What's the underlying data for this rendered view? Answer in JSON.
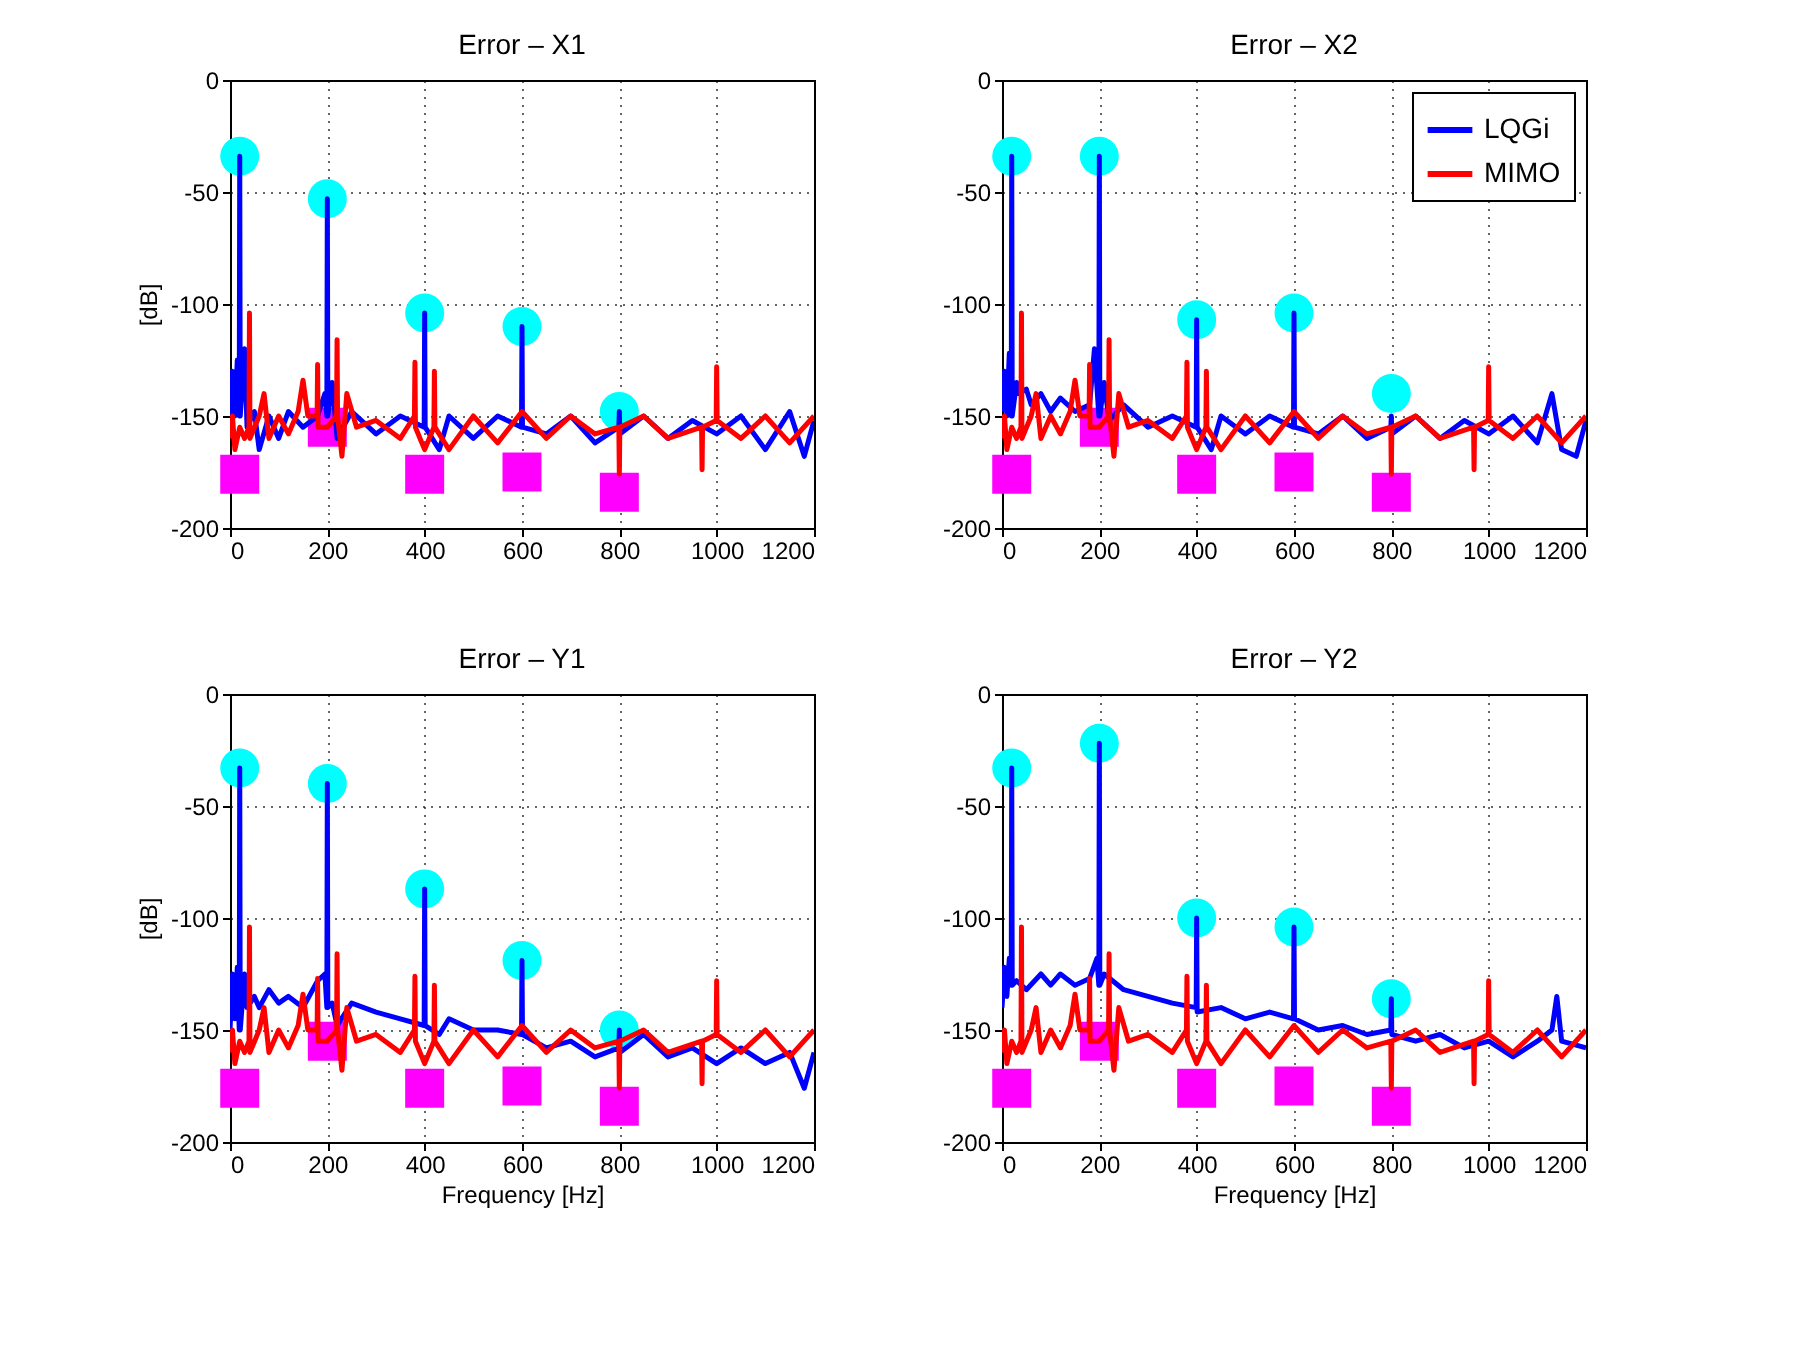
{
  "chart_data": [
    {
      "type": "line",
      "title": "Error – X1",
      "ylabel": "[dB]",
      "xlim": [
        0,
        1200
      ],
      "ylim": [
        -200,
        0
      ],
      "xticks": [
        0,
        200,
        400,
        600,
        800,
        1000,
        1200
      ],
      "yticks": [
        -200,
        -150,
        -100,
        -50,
        0
      ],
      "grid": true,
      "legend": false,
      "series": [
        {
          "color": "#0000ff",
          "x": [
            0,
            5,
            10,
            15,
            19,
            20,
            21,
            30,
            35,
            50,
            60,
            80,
            100,
            120,
            150,
            180,
            195,
            199,
            200,
            201,
            210,
            220,
            250,
            300,
            350,
            399,
            400,
            401,
            430,
            450,
            500,
            550,
            599,
            600,
            601,
            650,
            700,
            750,
            799,
            800,
            801,
            850,
            900,
            950,
            1000,
            1050,
            1100,
            1150,
            1180,
            1200
          ],
          "values": [
            -150,
            -130,
            -150,
            -125,
            -150,
            -34,
            -150,
            -120,
            -155,
            -148,
            -165,
            -150,
            -160,
            -148,
            -155,
            -150,
            -140,
            -150,
            -53,
            -150,
            -135,
            -160,
            -148,
            -158,
            -150,
            -155,
            -104,
            -155,
            -165,
            -150,
            -160,
            -150,
            -155,
            -110,
            -155,
            -158,
            -150,
            -162,
            -155,
            -148,
            -158,
            -150,
            -160,
            -152,
            -158,
            -150,
            -165,
            -148,
            -168,
            -152
          ]
        },
        {
          "color": "#ff0000",
          "x": [
            0,
            5,
            10,
            20,
            30,
            39,
            40,
            41,
            60,
            70,
            80,
            100,
            120,
            140,
            150,
            160,
            179,
            180,
            181,
            200,
            219,
            220,
            221,
            230,
            240,
            260,
            300,
            350,
            379,
            380,
            381,
            400,
            419,
            420,
            421,
            450,
            500,
            550,
            600,
            650,
            700,
            750,
            799,
            800,
            801,
            850,
            900,
            969,
            970,
            971,
            999,
            1000,
            1001,
            1050,
            1100,
            1150,
            1200
          ],
          "values": [
            -160,
            -150,
            -165,
            -155,
            -160,
            -155,
            -104,
            -160,
            -150,
            -140,
            -160,
            -150,
            -158,
            -148,
            -134,
            -150,
            -150,
            -127,
            -155,
            -155,
            -150,
            -116,
            -150,
            -168,
            -140,
            -155,
            -152,
            -160,
            -150,
            -126,
            -155,
            -165,
            -155,
            -130,
            -155,
            -165,
            -150,
            -162,
            -148,
            -160,
            -150,
            -158,
            -155,
            -176,
            -155,
            -150,
            -160,
            -155,
            -174,
            -155,
            -152,
            -128,
            -152,
            -160,
            -150,
            -162,
            -150
          ]
        },
        {
          "type": "scatter",
          "marker": "circle",
          "color": "#00ffff",
          "x": [
            20,
            200,
            400,
            600,
            800
          ],
          "values": [
            -34,
            -53,
            -104,
            -110,
            -148
          ]
        },
        {
          "type": "scatter",
          "marker": "square",
          "color": "#ff00ff",
          "x": [
            20,
            200,
            400,
            600,
            800
          ],
          "values": [
            -176,
            -155,
            -176,
            -175,
            -184
          ]
        }
      ]
    },
    {
      "type": "line",
      "title": "Error – X2",
      "xlim": [
        0,
        1200
      ],
      "ylim": [
        -200,
        0
      ],
      "xticks": [
        0,
        200,
        400,
        600,
        800,
        1000,
        1200
      ],
      "yticks": [
        -200,
        -150,
        -100,
        -50,
        0
      ],
      "grid": true,
      "legend": "top right",
      "series": [
        {
          "name": "LQGi",
          "color": "#0000ff",
          "x": [
            0,
            5,
            10,
            15,
            19,
            20,
            21,
            30,
            35,
            50,
            60,
            80,
            100,
            120,
            150,
            180,
            190,
            199,
            200,
            201,
            210,
            220,
            250,
            300,
            350,
            399,
            400,
            401,
            430,
            450,
            500,
            550,
            599,
            600,
            601,
            650,
            700,
            750,
            799,
            800,
            801,
            850,
            900,
            950,
            1000,
            1050,
            1100,
            1130,
            1150,
            1180,
            1200
          ],
          "values": [
            -148,
            -130,
            -150,
            -122,
            -150,
            -34,
            -150,
            -135,
            -140,
            -138,
            -145,
            -140,
            -148,
            -142,
            -148,
            -145,
            -120,
            -150,
            -34,
            -150,
            -135,
            -152,
            -145,
            -155,
            -150,
            -155,
            -107,
            -155,
            -165,
            -150,
            -158,
            -150,
            -155,
            -104,
            -155,
            -158,
            -150,
            -160,
            -155,
            -150,
            -158,
            -150,
            -160,
            -152,
            -158,
            -150,
            -162,
            -140,
            -165,
            -168,
            -152
          ]
        },
        {
          "name": "MIMO",
          "color": "#ff0000",
          "x": [
            0,
            5,
            10,
            20,
            30,
            39,
            40,
            41,
            60,
            70,
            80,
            100,
            120,
            140,
            150,
            160,
            179,
            180,
            181,
            200,
            219,
            220,
            221,
            230,
            240,
            260,
            300,
            350,
            379,
            380,
            381,
            400,
            419,
            420,
            421,
            450,
            500,
            550,
            600,
            650,
            700,
            750,
            799,
            800,
            801,
            850,
            900,
            969,
            970,
            971,
            999,
            1000,
            1001,
            1050,
            1100,
            1150,
            1200
          ],
          "values": [
            -160,
            -150,
            -165,
            -155,
            -160,
            -155,
            -104,
            -160,
            -150,
            -140,
            -160,
            -150,
            -158,
            -148,
            -134,
            -150,
            -150,
            -127,
            -155,
            -155,
            -150,
            -116,
            -150,
            -168,
            -140,
            -155,
            -152,
            -160,
            -150,
            -126,
            -155,
            -165,
            -155,
            -130,
            -155,
            -165,
            -150,
            -162,
            -148,
            -160,
            -150,
            -158,
            -155,
            -176,
            -155,
            -150,
            -160,
            -155,
            -174,
            -155,
            -152,
            -128,
            -152,
            -160,
            -150,
            -162,
            -150
          ]
        },
        {
          "type": "scatter",
          "marker": "circle",
          "color": "#00ffff",
          "x": [
            20,
            200,
            400,
            600,
            800
          ],
          "values": [
            -34,
            -34,
            -107,
            -104,
            -140
          ]
        },
        {
          "type": "scatter",
          "marker": "square",
          "color": "#ff00ff",
          "x": [
            20,
            200,
            400,
            600,
            800
          ],
          "values": [
            -176,
            -155,
            -176,
            -175,
            -184
          ]
        }
      ]
    },
    {
      "type": "line",
      "title": "Error – Y1",
      "xlabel": "Frequency [Hz]",
      "ylabel": "[dB]",
      "xlim": [
        0,
        1200
      ],
      "ylim": [
        -200,
        0
      ],
      "xticks": [
        0,
        200,
        400,
        600,
        800,
        1000,
        1200
      ],
      "yticks": [
        -200,
        -150,
        -100,
        -50,
        0
      ],
      "grid": true,
      "legend": false,
      "series": [
        {
          "color": "#0000ff",
          "x": [
            0,
            5,
            10,
            15,
            19,
            20,
            21,
            30,
            35,
            50,
            60,
            80,
            100,
            120,
            150,
            180,
            195,
            199,
            200,
            201,
            210,
            220,
            250,
            300,
            350,
            399,
            400,
            401,
            430,
            450,
            500,
            550,
            599,
            600,
            601,
            650,
            700,
            750,
            799,
            800,
            801,
            850,
            900,
            950,
            1000,
            1050,
            1100,
            1150,
            1180,
            1200
          ],
          "values": [
            -150,
            -125,
            -145,
            -122,
            -150,
            -33,
            -150,
            -125,
            -140,
            -135,
            -140,
            -132,
            -138,
            -135,
            -140,
            -128,
            -125,
            -140,
            -40,
            -140,
            -138,
            -148,
            -138,
            -142,
            -145,
            -148,
            -87,
            -148,
            -152,
            -145,
            -150,
            -150,
            -152,
            -119,
            -152,
            -158,
            -155,
            -162,
            -158,
            -150,
            -160,
            -152,
            -162,
            -158,
            -165,
            -158,
            -165,
            -160,
            -176,
            -160
          ]
        },
        {
          "color": "#ff0000",
          "x": [
            0,
            5,
            10,
            20,
            30,
            39,
            40,
            41,
            60,
            70,
            80,
            100,
            120,
            140,
            150,
            160,
            179,
            180,
            181,
            200,
            219,
            220,
            221,
            230,
            240,
            260,
            300,
            350,
            379,
            380,
            381,
            400,
            419,
            420,
            421,
            450,
            500,
            550,
            600,
            650,
            700,
            750,
            799,
            800,
            801,
            850,
            900,
            969,
            970,
            971,
            999,
            1000,
            1001,
            1050,
            1100,
            1150,
            1200
          ],
          "values": [
            -160,
            -150,
            -165,
            -155,
            -160,
            -155,
            -104,
            -160,
            -150,
            -140,
            -160,
            -150,
            -158,
            -148,
            -134,
            -150,
            -150,
            -127,
            -155,
            -155,
            -150,
            -116,
            -150,
            -168,
            -140,
            -155,
            -152,
            -160,
            -150,
            -126,
            -155,
            -165,
            -155,
            -130,
            -155,
            -165,
            -150,
            -162,
            -148,
            -160,
            -150,
            -158,
            -155,
            -176,
            -155,
            -150,
            -160,
            -155,
            -174,
            -155,
            -152,
            -128,
            -152,
            -160,
            -150,
            -162,
            -150
          ]
        },
        {
          "type": "scatter",
          "marker": "circle",
          "color": "#00ffff",
          "x": [
            20,
            200,
            400,
            600,
            800
          ],
          "values": [
            -33,
            -40,
            -87,
            -119,
            -150
          ]
        },
        {
          "type": "scatter",
          "marker": "square",
          "color": "#ff00ff",
          "x": [
            20,
            200,
            400,
            600,
            800
          ],
          "values": [
            -176,
            -155,
            -176,
            -175,
            -184
          ]
        }
      ]
    },
    {
      "type": "line",
      "title": "Error – Y2",
      "xlabel": "Frequency [Hz]",
      "xlim": [
        0,
        1200
      ],
      "ylim": [
        -200,
        0
      ],
      "xticks": [
        0,
        200,
        400,
        600,
        800,
        1000,
        1200
      ],
      "yticks": [
        -200,
        -150,
        -100,
        -50,
        0
      ],
      "grid": true,
      "legend": false,
      "series": [
        {
          "color": "#0000ff",
          "x": [
            0,
            5,
            10,
            15,
            19,
            20,
            21,
            30,
            50,
            80,
            100,
            120,
            150,
            180,
            195,
            199,
            200,
            201,
            210,
            250,
            300,
            350,
            399,
            400,
            401,
            450,
            500,
            550,
            599,
            600,
            601,
            650,
            700,
            750,
            799,
            800,
            801,
            850,
            900,
            950,
            1000,
            1050,
            1100,
            1130,
            1140,
            1150,
            1200
          ],
          "values": [
            -140,
            -122,
            -135,
            -118,
            -130,
            -33,
            -130,
            -128,
            -132,
            -125,
            -130,
            -125,
            -130,
            -127,
            -118,
            -130,
            -22,
            -130,
            -125,
            -132,
            -135,
            -138,
            -140,
            -100,
            -142,
            -140,
            -145,
            -142,
            -145,
            -104,
            -145,
            -150,
            -148,
            -152,
            -150,
            -136,
            -152,
            -155,
            -152,
            -158,
            -155,
            -162,
            -155,
            -150,
            -135,
            -155,
            -158
          ]
        },
        {
          "color": "#ff0000",
          "x": [
            0,
            5,
            10,
            20,
            30,
            39,
            40,
            41,
            60,
            70,
            80,
            100,
            120,
            140,
            150,
            160,
            179,
            180,
            181,
            200,
            219,
            220,
            221,
            230,
            240,
            260,
            300,
            350,
            379,
            380,
            381,
            400,
            419,
            420,
            421,
            450,
            500,
            550,
            600,
            650,
            700,
            750,
            799,
            800,
            801,
            850,
            900,
            969,
            970,
            971,
            999,
            1000,
            1001,
            1050,
            1100,
            1150,
            1200
          ],
          "values": [
            -160,
            -150,
            -165,
            -155,
            -160,
            -155,
            -104,
            -160,
            -150,
            -140,
            -160,
            -150,
            -158,
            -148,
            -134,
            -150,
            -150,
            -127,
            -155,
            -155,
            -150,
            -116,
            -150,
            -168,
            -140,
            -155,
            -152,
            -160,
            -150,
            -126,
            -155,
            -165,
            -155,
            -130,
            -155,
            -165,
            -150,
            -162,
            -148,
            -160,
            -150,
            -158,
            -155,
            -176,
            -155,
            -150,
            -160,
            -155,
            -174,
            -155,
            -152,
            -128,
            -152,
            -160,
            -150,
            -162,
            -150
          ]
        },
        {
          "type": "scatter",
          "marker": "circle",
          "color": "#00ffff",
          "x": [
            20,
            200,
            400,
            600,
            800
          ],
          "values": [
            -33,
            -22,
            -100,
            -104,
            -136
          ]
        },
        {
          "type": "scatter",
          "marker": "square",
          "color": "#ff00ff",
          "x": [
            20,
            200,
            400,
            600,
            800
          ],
          "values": [
            -176,
            -155,
            -176,
            -175,
            -184
          ]
        }
      ]
    }
  ]
}
